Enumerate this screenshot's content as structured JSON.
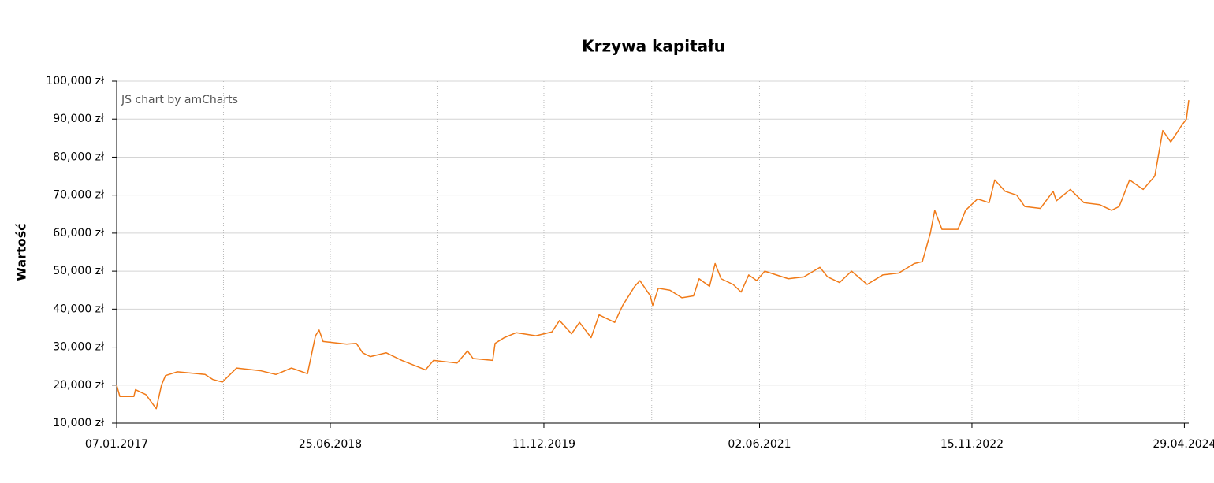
{
  "chart_data": {
    "type": "line",
    "title": "Krzywa kapitału",
    "ylabel": "Wartość",
    "watermark": "JS chart by amCharts",
    "grid": true,
    "xlim": [
      "2017-01-07",
      "2024-05-10"
    ],
    "xticks": [
      {
        "value": "2017-01-07",
        "label": "07.01.2017"
      },
      {
        "value": "2018-06-25",
        "label": "25.06.2018"
      },
      {
        "value": "2019-12-11",
        "label": "11.12.2019"
      },
      {
        "value": "2021-06-02",
        "label": "02.06.2021"
      },
      {
        "value": "2022-11-15",
        "label": "15.11.2022"
      },
      {
        "value": "2024-04-29",
        "label": "29.04.2024"
      }
    ],
    "ylim": [
      10000,
      100000
    ],
    "yticks": [
      {
        "value": 10000,
        "label": "10,000 zł"
      },
      {
        "value": 20000,
        "label": "20,000 zł"
      },
      {
        "value": 30000,
        "label": "30,000 zł"
      },
      {
        "value": 40000,
        "label": "40,000 zł"
      },
      {
        "value": 50000,
        "label": "50,000 zł"
      },
      {
        "value": 60000,
        "label": "60,000 zł"
      },
      {
        "value": 70000,
        "label": "70,000 zł"
      },
      {
        "value": 80000,
        "label": "80,000 zł"
      },
      {
        "value": 90000,
        "label": "90,000 zł"
      },
      {
        "value": 100000,
        "label": "100,000 zł"
      }
    ],
    "x": [
      "2017-01-07",
      "2017-01-15",
      "2017-02-19",
      "2017-02-23",
      "2017-03-21",
      "2017-04-16",
      "2017-04-29",
      "2017-05-09",
      "2017-06-08",
      "2017-08-16",
      "2017-09-04",
      "2017-09-28",
      "2017-11-03",
      "2018-01-01",
      "2018-02-09",
      "2018-03-20",
      "2018-04-29",
      "2018-05-19",
      "2018-05-28",
      "2018-06-07",
      "2018-08-05",
      "2018-08-29",
      "2018-09-14",
      "2018-10-03",
      "2018-11-12",
      "2018-12-21",
      "2019-02-18",
      "2019-03-10",
      "2019-05-08",
      "2019-06-03",
      "2019-06-17",
      "2019-08-05",
      "2019-08-11",
      "2019-09-03",
      "2019-10-03",
      "2019-11-21",
      "2019-12-31",
      "2020-01-19",
      "2020-02-18",
      "2020-03-09",
      "2020-04-07",
      "2020-04-27",
      "2020-06-05",
      "2020-06-25",
      "2020-07-25",
      "2020-08-07",
      "2020-09-02",
      "2020-09-08",
      "2020-09-22",
      "2020-10-21",
      "2020-11-20",
      "2020-12-19",
      "2021-01-02",
      "2021-01-28",
      "2021-02-11",
      "2021-02-26",
      "2021-03-28",
      "2021-04-17",
      "2021-05-06",
      "2021-05-26",
      "2021-06-15",
      "2021-08-13",
      "2021-09-21",
      "2021-10-31",
      "2021-11-19",
      "2021-12-19",
      "2022-01-18",
      "2022-02-26",
      "2022-04-06",
      "2022-05-16",
      "2022-06-24",
      "2022-07-14",
      "2022-08-03",
      "2022-08-14",
      "2022-09-01",
      "2022-10-11",
      "2022-10-30",
      "2022-11-29",
      "2022-12-28",
      "2023-01-11",
      "2023-02-06",
      "2023-03-07",
      "2023-03-27",
      "2023-05-05",
      "2023-06-06",
      "2023-06-14",
      "2023-07-19",
      "2023-08-22",
      "2023-09-30",
      "2023-10-30",
      "2023-11-18",
      "2023-12-14",
      "2024-01-17",
      "2024-02-15",
      "2024-03-06",
      "2024-03-26",
      "2024-04-20",
      "2024-05-04",
      "2024-05-10"
    ],
    "series": [
      {
        "name": "Wartość",
        "color": "#f07a18",
        "values": [
          20000,
          17000,
          17000,
          18800,
          17500,
          13800,
          20000,
          22500,
          23500,
          22800,
          21500,
          20800,
          24500,
          23800,
          22800,
          24500,
          23000,
          33000,
          34500,
          31500,
          30800,
          31000,
          28500,
          27500,
          28500,
          26500,
          24000,
          26500,
          25800,
          29000,
          27000,
          26500,
          31000,
          32500,
          33800,
          33000,
          34000,
          37000,
          33500,
          36500,
          32500,
          38500,
          36500,
          41000,
          46000,
          47500,
          43500,
          41000,
          45500,
          45000,
          43000,
          43500,
          48000,
          46000,
          52000,
          48000,
          46500,
          44500,
          49000,
          47500,
          50000,
          48000,
          48500,
          51000,
          48500,
          47000,
          50000,
          46500,
          49000,
          49500,
          52000,
          52500,
          60000,
          66000,
          61000,
          61000,
          66000,
          69000,
          68000,
          74000,
          71000,
          70000,
          67000,
          66500,
          71000,
          68500,
          71500,
          68000,
          67500,
          66000,
          67000,
          74000,
          71500,
          75000,
          87000,
          84000,
          88000,
          90000,
          95000
        ]
      }
    ]
  }
}
